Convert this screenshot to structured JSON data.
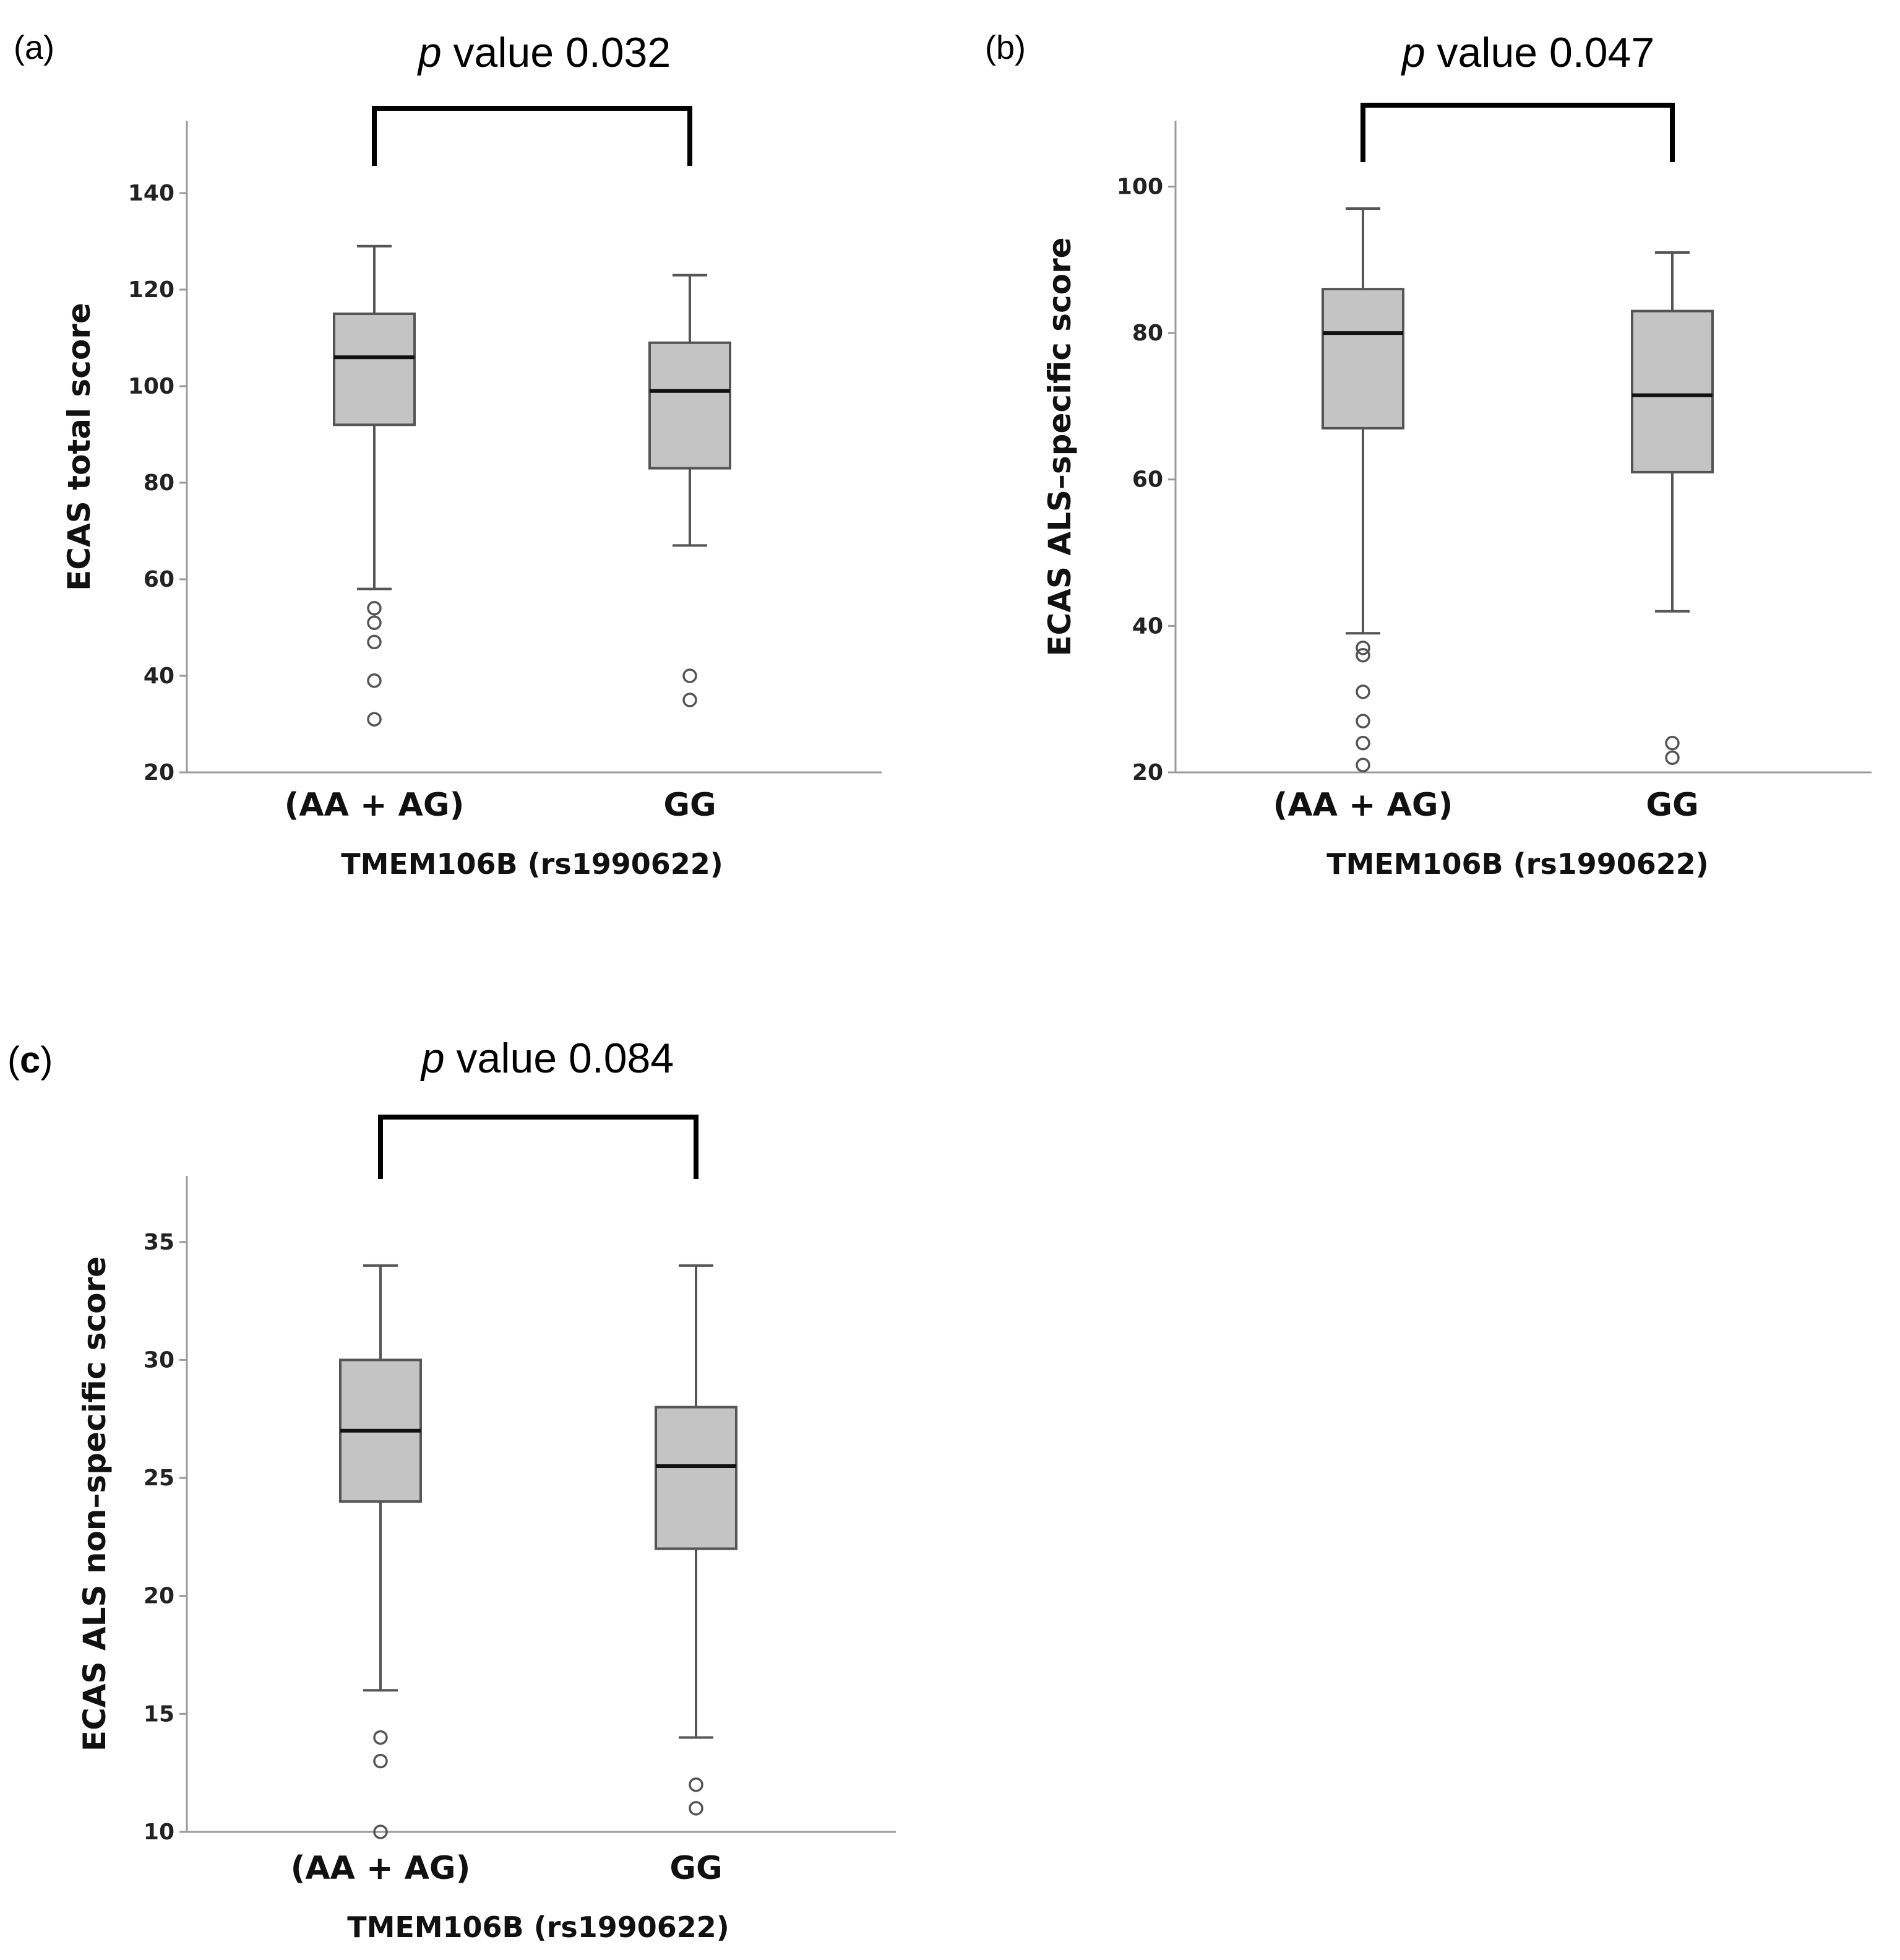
{
  "chart_data": [
    {
      "type": "boxplot",
      "panel_label": "(a)",
      "title_italic": "p",
      "title_rest": " value 0.032",
      "ylabel": "ECAS total score",
      "xlabel": "TMEM106B (rs1990622)",
      "ylim": [
        20,
        155
      ],
      "yticks": [
        20,
        40,
        60,
        80,
        100,
        120,
        140
      ],
      "categories": [
        "(AA + AG)",
        "GG"
      ],
      "boxes": [
        {
          "category": "(AA + AG)",
          "whisker_low": 58,
          "q1": 92,
          "median": 106,
          "q3": 115,
          "whisker_high": 129,
          "outliers": [
            54,
            51,
            47,
            39,
            31
          ]
        },
        {
          "category": "GG",
          "whisker_low": 67,
          "q1": 83,
          "median": 99,
          "q3": 109,
          "whisker_high": 123,
          "outliers": [
            40,
            35
          ]
        }
      ]
    },
    {
      "type": "boxplot",
      "panel_label": "(b)",
      "title_italic": "p",
      "title_rest": " value 0.047",
      "ylabel": "ECAS ALS–specific score",
      "xlabel": "TMEM106B (rs1990622)",
      "ylim": [
        20,
        109
      ],
      "yticks": [
        20,
        40,
        60,
        80,
        100
      ],
      "categories": [
        "(AA + AG)",
        "GG"
      ],
      "boxes": [
        {
          "category": "(AA + AG)",
          "whisker_low": 39,
          "q1": 67,
          "median": 80,
          "q3": 86,
          "whisker_high": 97,
          "outliers": [
            37,
            36,
            31,
            27,
            24,
            21
          ]
        },
        {
          "category": "GG",
          "whisker_low": 42,
          "q1": 61,
          "median": 71.5,
          "q3": 83,
          "whisker_high": 91,
          "outliers": [
            24,
            22
          ]
        }
      ]
    },
    {
      "type": "boxplot",
      "panel_label": "(c)",
      "title_italic": "p",
      "title_rest": " value 0.084",
      "ylabel": "ECAS ALS non–specific score",
      "xlabel": "TMEM106B (rs1990622)",
      "ylim": [
        10,
        37.8
      ],
      "yticks": [
        10,
        15,
        20,
        25,
        30,
        35
      ],
      "categories": [
        "(AA + AG)",
        "GG"
      ],
      "boxes": [
        {
          "category": "(AA + AG)",
          "whisker_low": 16,
          "q1": 24,
          "median": 27,
          "q3": 30,
          "whisker_high": 34,
          "outliers": [
            14,
            13,
            10
          ]
        },
        {
          "category": "GG",
          "whisker_low": 14,
          "q1": 22,
          "median": 25.5,
          "q3": 28,
          "whisker_high": 34,
          "outliers": [
            12,
            11
          ]
        }
      ]
    }
  ]
}
